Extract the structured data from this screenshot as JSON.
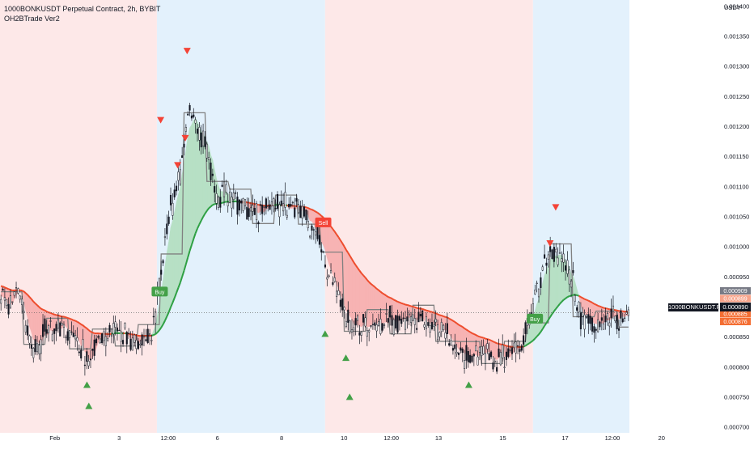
{
  "header": {
    "title": "1000BONKUSDT Perpetual Contract, 2h, BYBIT",
    "indicator": "OH2BTrade Ver2"
  },
  "axis": {
    "unit": "USDT"
  },
  "last_price_tag": {
    "symbol": "1000BONKUSDT.P",
    "price": "0.000890"
  },
  "price_tags": [
    {
      "value": "0.000909",
      "color": "#787b86"
    },
    {
      "value": "0.000899",
      "color": "#f7a38a"
    },
    {
      "value": "0.000890",
      "color": "#131722"
    },
    {
      "value": "0.000885",
      "color": "#f46e33"
    },
    {
      "value": "0.000876",
      "color": "#f46e33"
    }
  ],
  "colors": {
    "bg_bear": "#fde8e8",
    "bg_bull": "#e3f1fc",
    "fill_bear": "#f7b3b3",
    "fill_bull": "#b7e0c5",
    "ma_red": "#ee4b2b",
    "ma_green": "#2ea043",
    "step_line": "#808080",
    "buy": "#43a047",
    "sell": "#f44336",
    "candle": "#131722"
  },
  "chart_data": {
    "type": "candlestick",
    "y_axis": {
      "ticks": [
        "0.000700",
        "0.000750",
        "0.000800",
        "0.000850",
        "0.000900",
        "0.000950",
        "0.001000",
        "0.001050",
        "0.001100",
        "0.001150",
        "0.001200",
        "0.001250",
        "0.001300",
        "0.001350",
        "0.001400"
      ],
      "ylim": [
        0.00069,
        0.00141
      ]
    },
    "x_axis": {
      "ticks": [
        "Feb",
        "3",
        "12:00",
        "6",
        "8",
        "10",
        "12:00",
        "13",
        "15",
        "17",
        "12:00",
        "20"
      ]
    },
    "regimes": [
      {
        "state": "bear",
        "from": 0,
        "to": 8.3
      },
      {
        "state": "bull",
        "from": 8.3,
        "to": 17.2
      },
      {
        "state": "bear",
        "from": 17.2,
        "to": 28.2
      },
      {
        "state": "bull",
        "from": 28.2,
        "to": 33.3
      }
    ],
    "price_path": [
      [
        0,
        0.00092
      ],
      [
        0.5,
        0.0009
      ],
      [
        1.0,
        0.00094
      ],
      [
        1.3,
        0.00088
      ],
      [
        1.7,
        0.00083
      ],
      [
        2.5,
        0.00086
      ],
      [
        3.3,
        0.00087
      ],
      [
        4.0,
        0.00085
      ],
      [
        4.7,
        0.0008
      ],
      [
        5.2,
        0.000855
      ],
      [
        6.0,
        0.00086
      ],
      [
        6.7,
        0.00085
      ],
      [
        7.3,
        0.00084
      ],
      [
        8.0,
        0.000845
      ],
      [
        8.5,
        0.00096
      ],
      [
        9.0,
        0.00106
      ],
      [
        9.5,
        0.00112
      ],
      [
        10.0,
        0.00123
      ],
      [
        10.5,
        0.0012
      ],
      [
        11.0,
        0.00115
      ],
      [
        11.5,
        0.00109
      ],
      [
        12.5,
        0.00108
      ],
      [
        13.5,
        0.00106
      ],
      [
        14.5,
        0.00107
      ],
      [
        15.5,
        0.00107
      ],
      [
        16.2,
        0.00105
      ],
      [
        16.8,
        0.00101
      ],
      [
        17.3,
        0.00096
      ],
      [
        18.0,
        0.0009
      ],
      [
        18.7,
        0.00086
      ],
      [
        19.5,
        0.00087
      ],
      [
        20.5,
        0.00088
      ],
      [
        21.5,
        0.00088
      ],
      [
        22.5,
        0.00088
      ],
      [
        23.5,
        0.00086
      ],
      [
        24.5,
        0.00082
      ],
      [
        25.5,
        0.00082
      ],
      [
        26.5,
        0.000815
      ],
      [
        27.5,
        0.00083
      ],
      [
        28.2,
        0.0009
      ],
      [
        28.8,
        0.00097
      ],
      [
        29.3,
        0.001
      ],
      [
        29.8,
        0.00097
      ],
      [
        30.3,
        0.00094
      ],
      [
        30.8,
        0.00088
      ],
      [
        31.3,
        0.00087
      ],
      [
        32.0,
        0.00088
      ],
      [
        33.0,
        0.00089
      ]
    ],
    "signals": [
      {
        "type": "sell-arrow",
        "x": 8.5,
        "y": 0.00121
      },
      {
        "type": "sell-arrow",
        "x": 9.9,
        "y": 0.001325
      },
      {
        "type": "sell-arrow",
        "x": 9.8,
        "y": 0.00118
      },
      {
        "type": "sell-arrow",
        "x": 9.4,
        "y": 0.001135
      },
      {
        "type": "sell-arrow",
        "x": 29.4,
        "y": 0.001065
      },
      {
        "type": "sell-arrow",
        "x": 29.1,
        "y": 0.001005
      },
      {
        "type": "buy-arrow",
        "x": 4.6,
        "y": 0.00077
      },
      {
        "type": "buy-arrow",
        "x": 4.7,
        "y": 0.000735
      },
      {
        "type": "buy-arrow",
        "x": 17.2,
        "y": 0.000855
      },
      {
        "type": "buy-arrow",
        "x": 18.3,
        "y": 0.000815
      },
      {
        "type": "buy-arrow",
        "x": 18.5,
        "y": 0.00075
      },
      {
        "type": "buy-arrow",
        "x": 24.8,
        "y": 0.00077
      },
      {
        "type": "buy-label",
        "x": 8.45,
        "y": 0.000925,
        "text": "Buy"
      },
      {
        "type": "sell-label",
        "x": 17.1,
        "y": 0.00104,
        "text": "Sell"
      },
      {
        "type": "buy-label",
        "x": 28.3,
        "y": 0.00088,
        "text": "Buy"
      }
    ]
  }
}
